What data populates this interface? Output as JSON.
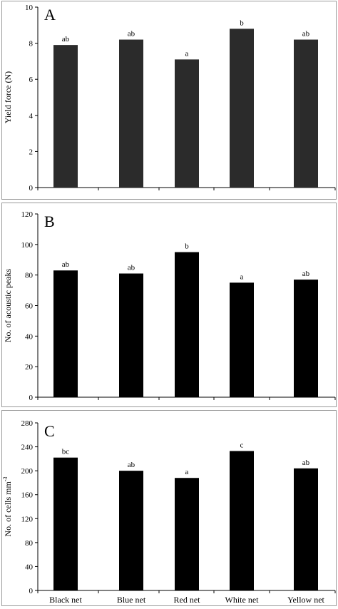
{
  "colors": {
    "bar_dark": "#2b2b2b",
    "bar_black": "#000000",
    "frame": "#9a9a9a"
  },
  "chart_data": [
    {
      "type": "bar",
      "panel": "A",
      "ylabel": "Yield force (N)",
      "ylabel_sup": "",
      "categories": [
        "Black net",
        "Blue net",
        "Red net",
        "White net",
        "Yellow net"
      ],
      "values": [
        7.9,
        8.2,
        7.1,
        8.8,
        8.2
      ],
      "letters": [
        "ab",
        "ab",
        "a",
        "b",
        "ab"
      ],
      "yticks": [
        "0",
        "2",
        "4",
        "6",
        "8",
        "10"
      ],
      "ylim": [
        0,
        10
      ],
      "bar_color": "bar_dark"
    },
    {
      "type": "bar",
      "panel": "B",
      "ylabel": "No. of acoustic peaks",
      "ylabel_sup": "",
      "categories": [
        "Black net",
        "Blue net",
        "Red net",
        "White net",
        "Yellow net"
      ],
      "values": [
        83,
        81,
        95,
        75,
        77
      ],
      "letters": [
        "ab",
        "ab",
        "b",
        "a",
        "ab"
      ],
      "yticks": [
        "0",
        "20",
        "40",
        "60",
        "80",
        "100",
        "120"
      ],
      "ylim": [
        0,
        120
      ],
      "bar_color": "bar_black"
    },
    {
      "type": "bar",
      "panel": "C",
      "ylabel": "No. of cells mm",
      "ylabel_sup": "-3",
      "categories": [
        "Black net",
        "Blue net",
        "Red net",
        "White net",
        "Yellow net"
      ],
      "values": [
        222,
        200,
        188,
        233,
        204
      ],
      "letters": [
        "bc",
        "ab",
        "a",
        "c",
        "ab"
      ],
      "yticks": [
        "0",
        "40",
        "80",
        "120",
        "160",
        "200",
        "240",
        "280"
      ],
      "ylim": [
        0,
        280
      ],
      "bar_color": "bar_black"
    }
  ]
}
